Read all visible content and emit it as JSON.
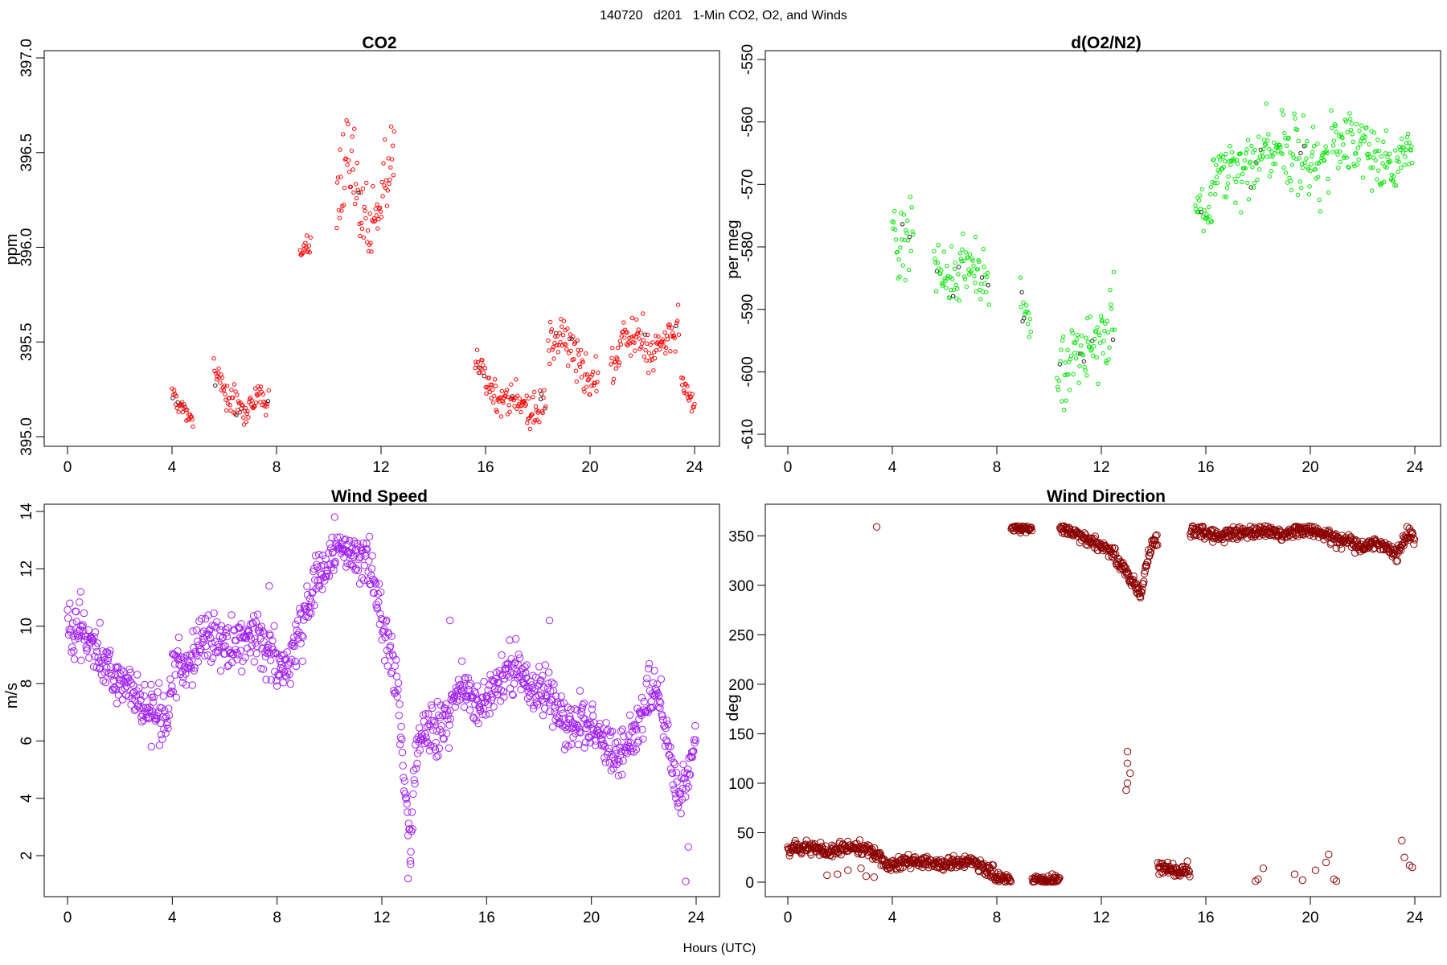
{
  "figure": {
    "title": "140720   d201   1-Min CO2, O2, and Winds",
    "xlabel": "Hours (UTC)"
  },
  "chart_data": [
    {
      "id": "co2",
      "type": "scatter",
      "title": "CO2",
      "xlabel": "",
      "ylabel": "ppm",
      "xlim": [
        0,
        24
      ],
      "ylim": [
        395.0,
        397.0
      ],
      "xticks": [
        "0",
        "4",
        "8",
        "12",
        "16",
        "20",
        "24"
      ],
      "yticks": [
        "395.0",
        "395.5",
        "396.0",
        "396.5",
        "397.0"
      ],
      "color": "#ff0000",
      "marker": "small-circle",
      "series": [
        {
          "name": "CO2",
          "segments": [
            {
              "x0": 4.0,
              "x1": 4.8,
              "centers": [
                395.22,
                395.15,
                395.11
              ],
              "spread": 0.04
            },
            {
              "x0": 5.6,
              "x1": 7.7,
              "centers": [
                395.36,
                395.22,
                395.18,
                395.14,
                395.2,
                395.18
              ],
              "spread": 0.06
            },
            {
              "x0": 8.9,
              "x1": 9.3,
              "centers": [
                395.96,
                396.03
              ],
              "spread": 0.04
            },
            {
              "x0": 10.3,
              "x1": 12.5,
              "centers": [
                396.33,
                396.45,
                396.22,
                396.1,
                396.35,
                396.4
              ],
              "spread": 0.2
            },
            {
              "x0": 15.6,
              "x1": 18.3,
              "centers": [
                395.4,
                395.28,
                395.15,
                395.22,
                395.12,
                395.18
              ],
              "spread": 0.08
            },
            {
              "x0": 18.4,
              "x1": 20.3,
              "centers": [
                395.48,
                395.55,
                395.35,
                395.3
              ],
              "spread": 0.1
            },
            {
              "x0": 20.8,
              "x1": 23.4,
              "centers": [
                395.4,
                395.55,
                395.5,
                395.45,
                395.5,
                395.6
              ],
              "spread": 0.1
            },
            {
              "x0": 23.5,
              "x1": 24.0,
              "centers": [
                395.3,
                395.16
              ],
              "spread": 0.04
            }
          ]
        }
      ]
    },
    {
      "id": "o2",
      "type": "scatter",
      "title": "d(O2/N2)",
      "xlabel": "",
      "ylabel": "per meg",
      "xlim": [
        0,
        24
      ],
      "ylim": [
        -610,
        -550
      ],
      "xticks": [
        "0",
        "4",
        "8",
        "12",
        "16",
        "20",
        "24"
      ],
      "yticks": [
        "-610",
        "-600",
        "-590",
        "-580",
        "-570",
        "-560",
        "-550"
      ],
      "color": "#00e600",
      "marker": "small-circle",
      "series": [
        {
          "name": "d(O2/N2)",
          "segments": [
            {
              "x0": 4.0,
              "x1": 4.8,
              "centers": [
                -578,
                -580,
                -577
              ],
              "spread": 5
            },
            {
              "x0": 5.6,
              "x1": 7.7,
              "centers": [
                -582,
                -585,
                -583,
                -584,
                -586
              ],
              "spread": 4
            },
            {
              "x0": 8.9,
              "x1": 9.3,
              "centers": [
                -588,
                -592
              ],
              "spread": 4
            },
            {
              "x0": 10.3,
              "x1": 12.5,
              "centers": [
                -600,
                -597,
                -596,
                -594,
                -593
              ],
              "spread": 5
            },
            {
              "x0": 15.6,
              "x1": 16.2,
              "centers": [
                -574,
                -575
              ],
              "spread": 3
            },
            {
              "x0": 16.2,
              "x1": 20.7,
              "centers": [
                -570,
                -567,
                -566,
                -564,
                -566,
                -567
              ],
              "spread": 5
            },
            {
              "x0": 20.8,
              "x1": 23.9,
              "centers": [
                -562,
                -563,
                -564,
                -566,
                -567,
                -564
              ],
              "spread": 4
            }
          ]
        }
      ]
    },
    {
      "id": "wspd",
      "type": "scatter",
      "title": "Wind Speed",
      "xlabel": "",
      "ylabel": "m/s",
      "xlim": [
        0,
        24
      ],
      "ylim": [
        2,
        14
      ],
      "xticks": [
        "0",
        "4",
        "8",
        "12",
        "16",
        "20",
        "24"
      ],
      "yticks": [
        "2",
        "4",
        "6",
        "8",
        "10",
        "12",
        "14"
      ],
      "color": "#a020f0",
      "marker": "circle",
      "series": [
        {
          "name": "Wind Speed",
          "points": [
            [
              0,
              9.8
            ],
            [
              0.5,
              10.0
            ],
            [
              1,
              9.4
            ],
            [
              1.5,
              8.8
            ],
            [
              2,
              8.1
            ],
            [
              2.5,
              7.6
            ],
            [
              3,
              7.2
            ],
            [
              3.5,
              6.8
            ],
            [
              3.8,
              6.6
            ],
            [
              4,
              8.4
            ],
            [
              4.5,
              8.6
            ],
            [
              5,
              9.3
            ],
            [
              5.5,
              9.6
            ],
            [
              6,
              9.3
            ],
            [
              6.5,
              9.5
            ],
            [
              7,
              9.8
            ],
            [
              7.5,
              9.3
            ],
            [
              8,
              8.6
            ],
            [
              8.5,
              8.8
            ],
            [
              9,
              10.2
            ],
            [
              9.5,
              11.6
            ],
            [
              10,
              12.3
            ],
            [
              10.5,
              12.8
            ],
            [
              11,
              12.6
            ],
            [
              11.5,
              12.3
            ],
            [
              12,
              10.5
            ],
            [
              12.5,
              8.2
            ],
            [
              12.7,
              6.5
            ],
            [
              12.9,
              4.0
            ],
            [
              13.1,
              2.5
            ],
            [
              13.3,
              5.5
            ],
            [
              13.6,
              6.4
            ],
            [
              14,
              6.1
            ],
            [
              14.5,
              6.6
            ],
            [
              15,
              8.0
            ],
            [
              15.5,
              7.2
            ],
            [
              16,
              7.6
            ],
            [
              16.5,
              8.2
            ],
            [
              17,
              8.4
            ],
            [
              17.5,
              8.0
            ],
            [
              18,
              7.8
            ],
            [
              18.5,
              7.5
            ],
            [
              19,
              6.4
            ],
            [
              19.5,
              6.8
            ],
            [
              20,
              6.5
            ],
            [
              20.5,
              5.7
            ],
            [
              21,
              5.4
            ],
            [
              21.5,
              6.0
            ],
            [
              22,
              7.0
            ],
            [
              22.5,
              8.2
            ],
            [
              23,
              5.5
            ],
            [
              23.3,
              3.8
            ],
            [
              23.6,
              4.5
            ],
            [
              24,
              6.1
            ]
          ]
        }
      ]
    },
    {
      "id": "wdir",
      "type": "scatter",
      "title": "Wind Direction",
      "xlabel": "",
      "ylabel": "deg",
      "xlim": [
        0,
        24
      ],
      "ylim": [
        0,
        360
      ],
      "xticks": [
        "0",
        "4",
        "8",
        "12",
        "16",
        "20",
        "24"
      ],
      "yticks": [
        "0",
        "50",
        "100",
        "150",
        "200",
        "250",
        "300",
        "350"
      ],
      "color": "#8b0000",
      "marker": "circle",
      "series": [
        {
          "name": "Wind Direction",
          "points": [
            [
              0,
              32
            ],
            [
              0.5,
              36
            ],
            [
              1,
              35
            ],
            [
              1.5,
              30
            ],
            [
              2,
              34
            ],
            [
              2.5,
              35
            ],
            [
              3,
              33
            ],
            [
              3.5,
              27
            ],
            [
              3.7,
              18
            ],
            [
              4,
              17
            ],
            [
              4.5,
              22
            ],
            [
              5,
              22
            ],
            [
              5.5,
              20
            ],
            [
              6,
              17
            ],
            [
              6.5,
              20
            ],
            [
              7,
              21
            ],
            [
              7.5,
              15
            ],
            [
              8,
              7
            ],
            [
              8.5,
              2
            ],
            [
              8.6,
              358
            ],
            [
              9.2,
              360
            ],
            [
              9.5,
              1
            ],
            [
              10,
              1
            ],
            [
              10.3,
              1
            ],
            [
              10.5,
              358
            ],
            [
              11,
              353
            ],
            [
              11.5,
              346
            ],
            [
              12,
              340
            ],
            [
              12.5,
              330
            ],
            [
              12.8,
              320
            ],
            [
              13.2,
              305
            ],
            [
              13.5,
              290
            ],
            [
              13.8,
              330
            ],
            [
              14,
              345
            ],
            [
              14.3,
              15
            ],
            [
              14.8,
              10
            ],
            [
              15.2,
              12
            ],
            [
              15.6,
              355
            ],
            [
              16,
              352
            ],
            [
              16.5,
              350
            ],
            [
              17,
              354
            ],
            [
              17.5,
              353
            ],
            [
              18,
              356
            ],
            [
              18.5,
              355
            ],
            [
              19,
              352
            ],
            [
              19.5,
              357
            ],
            [
              20,
              355
            ],
            [
              20.5,
              353
            ],
            [
              21,
              345
            ],
            [
              21.5,
              343
            ],
            [
              22,
              340
            ],
            [
              22.5,
              342
            ],
            [
              23,
              338
            ],
            [
              23.3,
              330
            ],
            [
              23.7,
              352
            ],
            [
              24,
              348
            ]
          ]
        }
      ]
    }
  ]
}
